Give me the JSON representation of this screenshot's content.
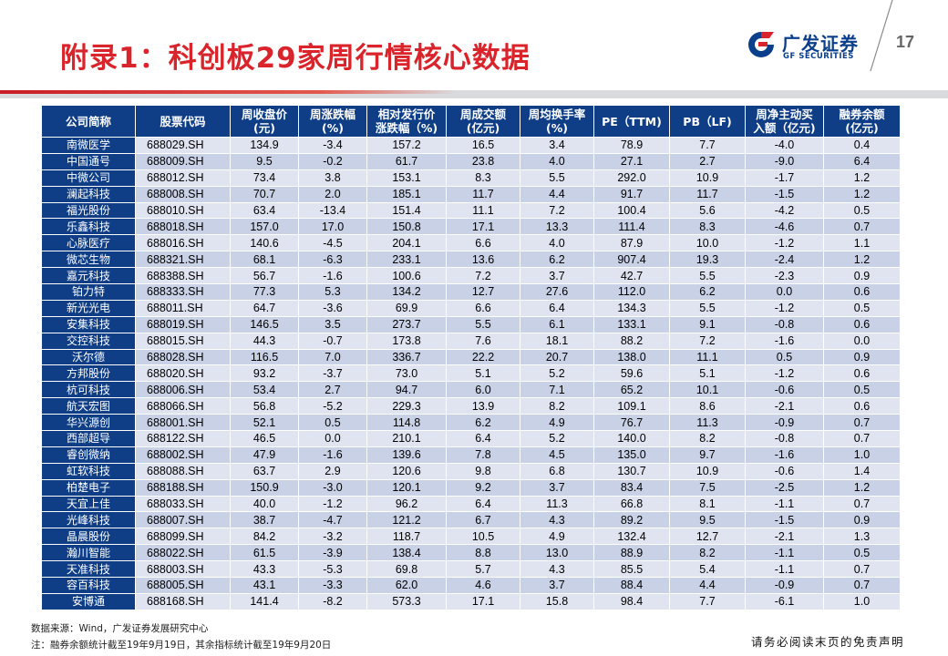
{
  "header": {
    "title": "附录1：科创板29家周行情核心数据",
    "logo_cn": "广发证券",
    "logo_en": "GF SECURITIES",
    "page_number": "17"
  },
  "colors": {
    "title_red": "#d9242b",
    "table_blue": "#0f3e87",
    "row_light": "#dfe4f0",
    "row_dark": "#c9d1e6"
  },
  "table": {
    "headers": [
      [
        "公司简称"
      ],
      [
        "股票代码"
      ],
      [
        "周收盘价",
        "(元)"
      ],
      [
        "周涨跌幅",
        "(%)"
      ],
      [
        "相对发行价",
        "涨跌幅（%)"
      ],
      [
        "周成交额",
        "(亿元)"
      ],
      [
        "周均换手率",
        "(%)"
      ],
      [
        "PE（TTM)"
      ],
      [
        "PB（LF)"
      ],
      [
        "周净主动买",
        "入额（亿元)"
      ],
      [
        "融券余额",
        "(亿元)"
      ]
    ],
    "rows": [
      [
        "南微医学",
        "688029.SH",
        "134.9",
        "-3.4",
        "157.2",
        "16.5",
        "3.4",
        "78.9",
        "7.7",
        "-4.0",
        "0.4"
      ],
      [
        "中国通号",
        "688009.SH",
        "9.5",
        "-0.2",
        "61.7",
        "23.8",
        "4.0",
        "27.1",
        "2.7",
        "-9.0",
        "6.4"
      ],
      [
        "中微公司",
        "688012.SH",
        "73.4",
        "3.8",
        "153.1",
        "8.3",
        "5.5",
        "292.0",
        "10.9",
        "-1.7",
        "1.2"
      ],
      [
        "澜起科技",
        "688008.SH",
        "70.7",
        "2.0",
        "185.1",
        "11.7",
        "4.4",
        "91.7",
        "11.7",
        "-1.5",
        "1.2"
      ],
      [
        "福光股份",
        "688010.SH",
        "63.4",
        "-13.4",
        "151.4",
        "11.1",
        "7.2",
        "100.4",
        "5.6",
        "-4.2",
        "0.5"
      ],
      [
        "乐鑫科技",
        "688018.SH",
        "157.0",
        "17.0",
        "150.8",
        "17.1",
        "13.3",
        "111.4",
        "8.3",
        "-4.6",
        "0.7"
      ],
      [
        "心脉医疗",
        "688016.SH",
        "140.6",
        "-4.5",
        "204.1",
        "6.6",
        "4.0",
        "87.9",
        "10.0",
        "-1.2",
        "1.1"
      ],
      [
        "微芯生物",
        "688321.SH",
        "68.1",
        "-6.3",
        "233.1",
        "13.6",
        "6.2",
        "907.4",
        "19.3",
        "-2.4",
        "1.2"
      ],
      [
        "嘉元科技",
        "688388.SH",
        "56.7",
        "-1.6",
        "100.6",
        "7.2",
        "3.7",
        "42.7",
        "5.5",
        "-2.3",
        "0.9"
      ],
      [
        "铂力特",
        "688333.SH",
        "77.3",
        "5.3",
        "134.2",
        "12.7",
        "27.6",
        "112.0",
        "6.2",
        "0.0",
        "0.6"
      ],
      [
        "新光光电",
        "688011.SH",
        "64.7",
        "-3.6",
        "69.9",
        "6.6",
        "6.4",
        "134.3",
        "5.5",
        "-1.2",
        "0.5"
      ],
      [
        "安集科技",
        "688019.SH",
        "146.5",
        "3.5",
        "273.7",
        "5.5",
        "6.1",
        "133.1",
        "9.1",
        "-0.8",
        "0.6"
      ],
      [
        "交控科技",
        "688015.SH",
        "44.3",
        "-0.7",
        "173.8",
        "7.6",
        "18.1",
        "88.2",
        "7.2",
        "-1.6",
        "0.0"
      ],
      [
        "沃尔德",
        "688028.SH",
        "116.5",
        "7.0",
        "336.7",
        "22.2",
        "20.7",
        "138.0",
        "11.1",
        "0.5",
        "0.9"
      ],
      [
        "方邦股份",
        "688020.SH",
        "93.2",
        "-3.7",
        "73.0",
        "5.1",
        "5.2",
        "59.6",
        "5.1",
        "-1.2",
        "0.6"
      ],
      [
        "杭可科技",
        "688006.SH",
        "53.4",
        "2.7",
        "94.7",
        "6.0",
        "7.1",
        "65.2",
        "10.1",
        "-0.6",
        "0.5"
      ],
      [
        "航天宏图",
        "688066.SH",
        "56.8",
        "-5.2",
        "229.3",
        "13.9",
        "8.2",
        "109.1",
        "8.6",
        "-2.1",
        "0.6"
      ],
      [
        "华兴源创",
        "688001.SH",
        "52.1",
        "0.5",
        "114.8",
        "6.2",
        "4.9",
        "76.7",
        "11.3",
        "-0.9",
        "0.7"
      ],
      [
        "西部超导",
        "688122.SH",
        "46.5",
        "0.0",
        "210.1",
        "6.4",
        "5.2",
        "140.0",
        "8.2",
        "-0.8",
        "0.7"
      ],
      [
        "睿创微纳",
        "688002.SH",
        "47.9",
        "-1.6",
        "139.6",
        "7.8",
        "4.5",
        "135.0",
        "9.7",
        "-1.6",
        "1.0"
      ],
      [
        "虹软科技",
        "688088.SH",
        "63.7",
        "2.9",
        "120.6",
        "9.8",
        "6.8",
        "130.7",
        "10.9",
        "-0.6",
        "1.4"
      ],
      [
        "柏楚电子",
        "688188.SH",
        "150.9",
        "-3.0",
        "120.1",
        "9.2",
        "3.7",
        "83.4",
        "7.5",
        "-2.5",
        "1.2"
      ],
      [
        "天宜上佳",
        "688033.SH",
        "40.0",
        "-1.2",
        "96.2",
        "6.4",
        "11.3",
        "66.8",
        "8.1",
        "-1.1",
        "0.7"
      ],
      [
        "光峰科技",
        "688007.SH",
        "38.7",
        "-4.7",
        "121.2",
        "6.7",
        "4.3",
        "89.2",
        "9.5",
        "-1.5",
        "0.9"
      ],
      [
        "晶晨股份",
        "688099.SH",
        "84.2",
        "-3.2",
        "118.7",
        "10.5",
        "4.9",
        "132.4",
        "12.7",
        "-2.1",
        "1.3"
      ],
      [
        "瀚川智能",
        "688022.SH",
        "61.5",
        "-3.9",
        "138.4",
        "8.8",
        "13.0",
        "88.9",
        "8.2",
        "-1.1",
        "0.5"
      ],
      [
        "天准科技",
        "688003.SH",
        "43.3",
        "-5.3",
        "69.8",
        "5.7",
        "4.3",
        "85.5",
        "5.4",
        "-1.1",
        "0.7"
      ],
      [
        "容百科技",
        "688005.SH",
        "43.1",
        "-3.3",
        "62.0",
        "4.6",
        "3.7",
        "88.4",
        "4.4",
        "-0.9",
        "0.7"
      ],
      [
        "安博通",
        "688168.SH",
        "141.4",
        "-8.2",
        "573.3",
        "17.1",
        "15.8",
        "98.4",
        "7.7",
        "-6.1",
        "1.0"
      ]
    ]
  },
  "footer": {
    "source": "数据来源：Wind，广发证券发展研究中心",
    "note": "注：融券余额统计截至19年9月19日，其余指标统计截至19年9月20日",
    "disclaimer": "请务必阅读末页的免责声明"
  }
}
